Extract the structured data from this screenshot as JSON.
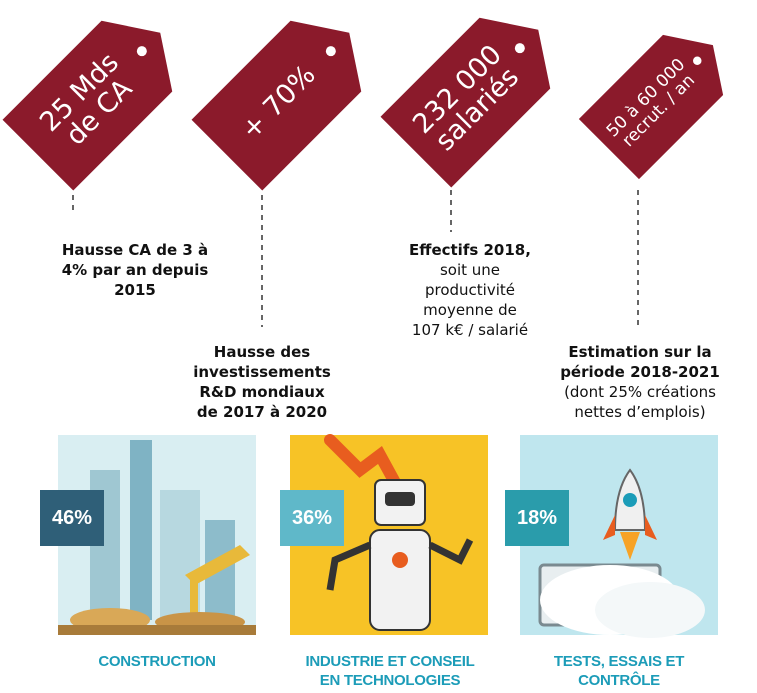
{
  "tags": [
    {
      "lines": [
        "25 Mds",
        "de CA"
      ]
    },
    {
      "lines": [
        "+ 70%"
      ]
    },
    {
      "lines": [
        "232 000",
        "salariés"
      ]
    },
    {
      "lines": [
        "50 à 60 000",
        "recrut. / an"
      ]
    }
  ],
  "captions": [
    {
      "bold": [
        "Hausse CA de 3 à",
        "4% par an depuis",
        "2015"
      ]
    },
    {
      "bold": [
        "Hausse des",
        "investissements",
        "R&D mondiaux",
        "de 2017 à 2020"
      ]
    },
    {
      "bold": [
        "Effectifs 2018,"
      ],
      "normal": [
        "soit une",
        "productivité",
        "moyenne de",
        "107 k€ / salarié"
      ]
    },
    {
      "bold": [
        "Estimation sur la",
        "période 2018-2021"
      ],
      "normal": [
        "(dont 25% créations",
        "nettes d’emplois)"
      ]
    }
  ],
  "sectors": [
    {
      "percent": "46%",
      "label": [
        "CONSTRUCTION"
      ]
    },
    {
      "percent": "36%",
      "label": [
        "INDUSTRIE ET CONSEIL",
        "EN TECHNOLOGIES"
      ]
    },
    {
      "percent": "18%",
      "label": [
        "TESTS, ESSAIS ET",
        "CONTRÔLE"
      ]
    }
  ]
}
